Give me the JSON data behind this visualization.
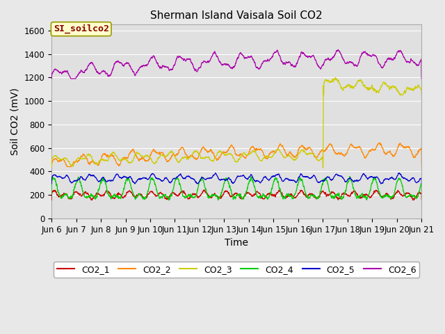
{
  "title": "Sherman Island Vaisala Soil CO2",
  "xlabel": "Time",
  "ylabel": "Soil CO2 (mV)",
  "ylim": [
    0,
    1650
  ],
  "yticks": [
    0,
    200,
    400,
    600,
    800,
    1000,
    1200,
    1400,
    1600
  ],
  "xtick_labels": [
    "Jun 6",
    "Jun 7",
    "Jun 8",
    "Jun 9",
    "Jun 10",
    "Jun 11",
    "Jun 12",
    "Jun 13",
    "Jun 14",
    "Jun 15",
    "Jun 16",
    "Jun 17",
    "Jun 18",
    "Jun 19",
    "Jun 20",
    "Jun 21"
  ],
  "line_colors": {
    "CO2_1": "#cc0000",
    "CO2_2": "#ff8800",
    "CO2_3": "#cccc00",
    "CO2_4": "#00cc00",
    "CO2_5": "#0000cc",
    "CO2_6": "#aa00aa"
  },
  "annotation_text": "SI_soilco2",
  "annotation_box_color": "#ffffcc",
  "annotation_border_color": "#999900",
  "annotation_text_color": "#880000",
  "fig_bg": "#e8e8e8",
  "plot_bg": "#e0e0e0",
  "grid_color": "#ffffff",
  "title_fontsize": 11,
  "axis_fontsize": 10,
  "tick_fontsize": 8.5,
  "legend_fontsize": 9
}
